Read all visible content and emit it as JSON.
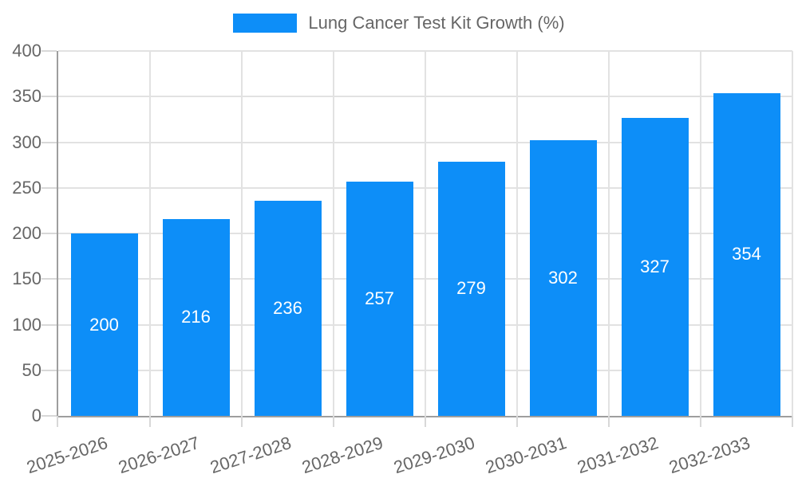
{
  "chart_data": {
    "type": "bar",
    "title": "Lung Cancer Test Kit Growth (%)",
    "legend": {
      "label": "Lung Cancer Test Kit Growth (%)",
      "position": "top"
    },
    "categories": [
      "2025-2026",
      "2026-2027",
      "2027-2028",
      "2028-2029",
      "2029-2030",
      "2030-2031",
      "2031-2032",
      "2032-2033"
    ],
    "values": [
      200,
      216,
      236,
      257,
      279,
      302,
      327,
      354
    ],
    "xlabel": "",
    "ylabel": "",
    "ylim": [
      0,
      400
    ],
    "yticks": [
      0,
      50,
      100,
      150,
      200,
      250,
      300,
      350,
      400
    ],
    "grid": true,
    "bar_labels_visible": true,
    "x_label_rotation_deg": -18
  },
  "style": {
    "bar_color": "#0d8ef8",
    "bar_label_color": "#ffffff",
    "axis_line_color": "#9e9e9e",
    "grid_color": "#e2e2e2",
    "tick_color": "#d8d8d8",
    "text_color": "#666666",
    "background": "#ffffff"
  }
}
